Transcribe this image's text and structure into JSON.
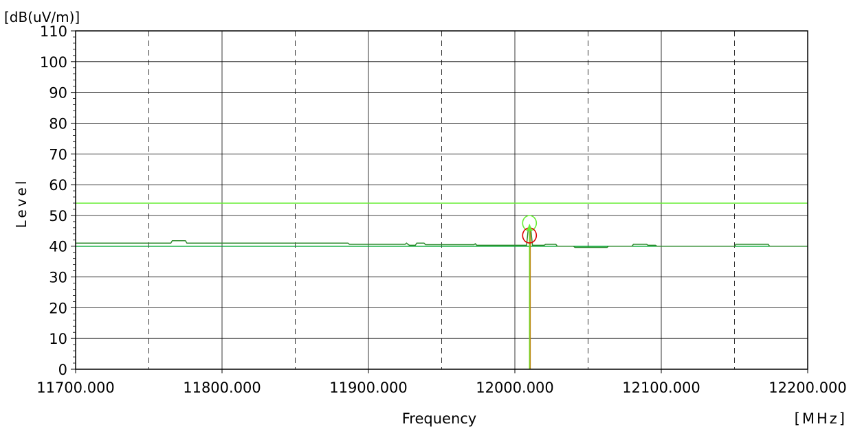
{
  "chart_data": {
    "type": "line",
    "title": "",
    "ylabel": "Level",
    "yunit": "[dB(uV/m)]",
    "xlabel": "Frequency",
    "xunit": "[MHz]",
    "xlim": [
      11700,
      12200
    ],
    "ylim": [
      0,
      110
    ],
    "xticks": [
      11700,
      11800,
      11900,
      12000,
      12100,
      12200
    ],
    "xtick_labels": [
      "11700.000",
      "11800.000",
      "11900.000",
      "12000.000",
      "12100.000",
      "12200.000"
    ],
    "xtick_minor_dashed": [
      11750,
      11850,
      11950,
      12050,
      12150
    ],
    "yticks": [
      0,
      10,
      20,
      30,
      40,
      50,
      60,
      70,
      80,
      90,
      100,
      110
    ],
    "ytick_labels": [
      "0",
      "10",
      "20",
      "30",
      "40",
      "50",
      "60",
      "70",
      "80",
      "90",
      "100",
      "110"
    ],
    "grid": true,
    "legend": "none",
    "series": [
      {
        "color": "#66ee33",
        "values_x": [
          11700,
          12200
        ],
        "values_y": [
          54,
          54
        ]
      },
      {
        "color": "#00aa33",
        "values_x": [
          11700,
          12200
        ],
        "values_y": [
          40,
          40
        ]
      },
      {
        "color": "#2e8b2e",
        "values_x": [
          11700,
          11765,
          11766,
          11775,
          11776,
          11886,
          11887,
          11925,
          11926,
          11927,
          11928,
          11932,
          11933,
          11938,
          11939,
          11972,
          11973,
          11974,
          11975,
          12008,
          12009,
          12010,
          12011,
          12012,
          12020,
          12021,
          12028,
          12029,
          12040,
          12041,
          12063,
          12064,
          12080,
          12081,
          12090,
          12091,
          12096,
          12097,
          12150,
          12151,
          12173,
          12174,
          12200
        ],
        "values_y": [
          41,
          41,
          41.8,
          41.8,
          41,
          41,
          40.6,
          40.6,
          41,
          40.6,
          40.3,
          40.3,
          41,
          41,
          40.5,
          40.5,
          40.8,
          40.3,
          40.3,
          40.3,
          45,
          46,
          45,
          40.3,
          40.3,
          40.6,
          40.6,
          40,
          40,
          39.6,
          39.6,
          40,
          40,
          40.6,
          40.6,
          40.3,
          40.3,
          40,
          40,
          40.6,
          40.6,
          40,
          40
        ]
      }
    ],
    "markers": [
      {
        "x": 12010,
        "y": 47.5,
        "shape": "circle",
        "color": "#66ee33"
      },
      {
        "x": 12010,
        "y": 43.5,
        "shape": "circle",
        "color": "#dd0000"
      },
      {
        "x": 12010,
        "y": 46,
        "shape": "arrow-up",
        "color": "#66ee33"
      }
    ],
    "vlines": [
      {
        "x": 12010,
        "color": "#66ee33"
      },
      {
        "x": 12010.5,
        "color": "#b8860b"
      }
    ]
  }
}
